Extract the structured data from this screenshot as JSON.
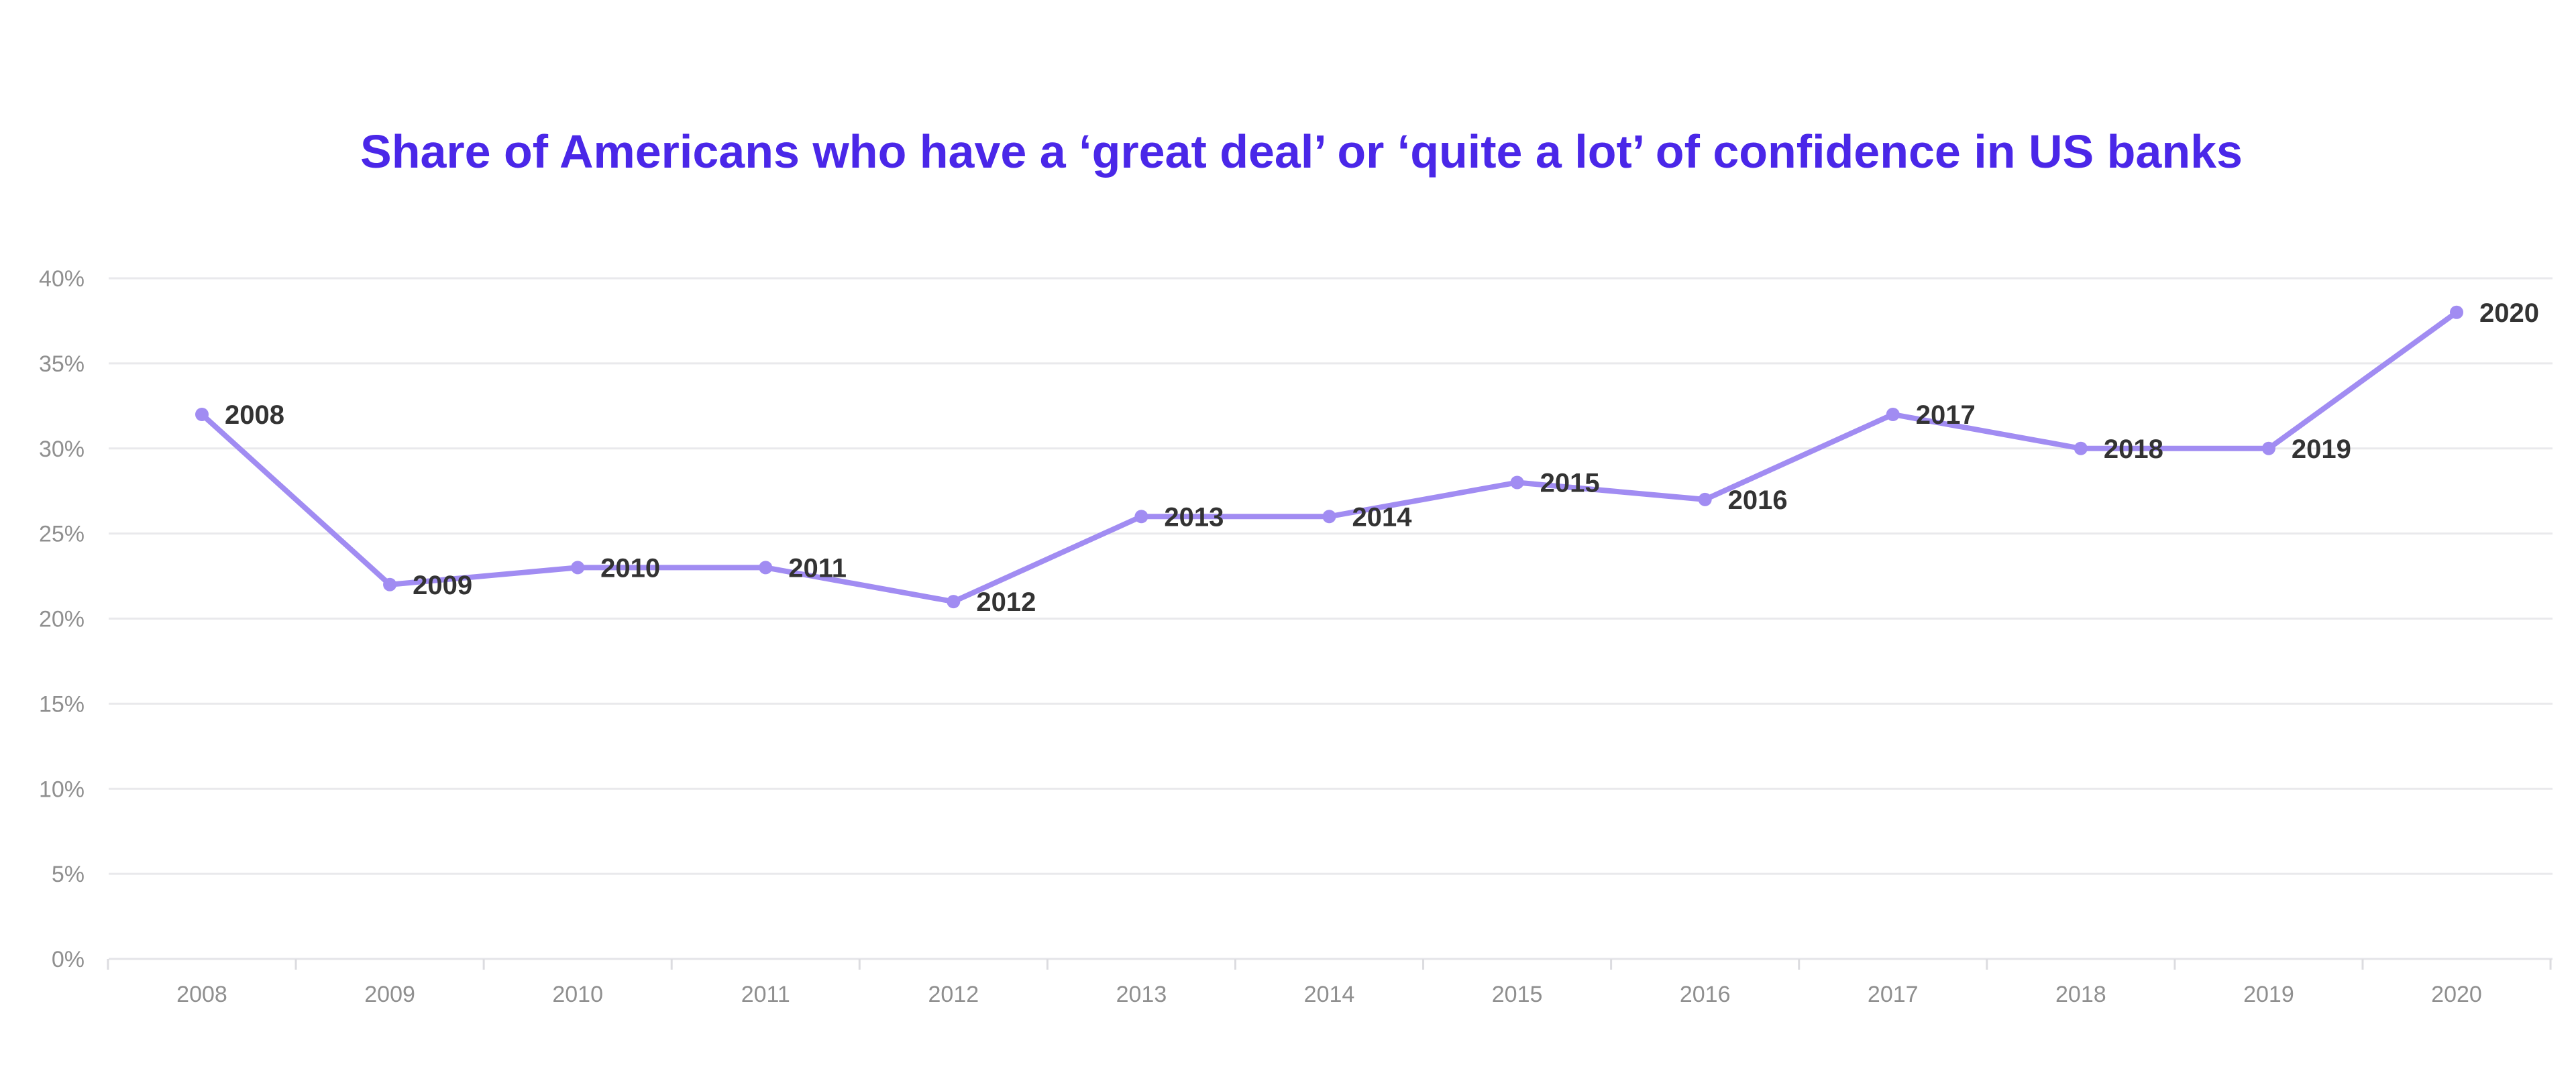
{
  "chart_data": {
    "type": "line",
    "title": "Share of Americans who have a ‘great deal’ or ‘quite a lot’ of confidence in US banks",
    "xlabel": "",
    "ylabel": "",
    "x": [
      "2008",
      "2009",
      "2010",
      "2011",
      "2012",
      "2013",
      "2014",
      "2015",
      "2016",
      "2017",
      "2018",
      "2019",
      "2020"
    ],
    "series": [
      {
        "values": [
          32,
          22,
          23,
          23,
          21,
          26,
          26,
          28,
          27,
          32,
          30,
          30,
          38
        ],
        "point_labels": [
          "2008",
          "2009",
          "2010",
          "2011",
          "2012",
          "2013",
          "2014",
          "2015",
          "2016",
          "2017",
          "2018",
          "2019",
          "2020"
        ],
        "color": "#a18cf2"
      }
    ],
    "ylim": [
      0,
      40
    ],
    "y_ticks": [
      0,
      5,
      10,
      15,
      20,
      25,
      30,
      35,
      40
    ],
    "y_tick_labels": [
      "0%",
      "5%",
      "10%",
      "15%",
      "20%",
      "25%",
      "30%",
      "35%",
      "40%"
    ],
    "grid": true,
    "legend": "none",
    "colors": {
      "title": "#4a27e8",
      "line": "#a18cf2",
      "data_label": "#333333",
      "tick_label": "#8f8f8f",
      "grid": "#e9e9ec"
    }
  }
}
